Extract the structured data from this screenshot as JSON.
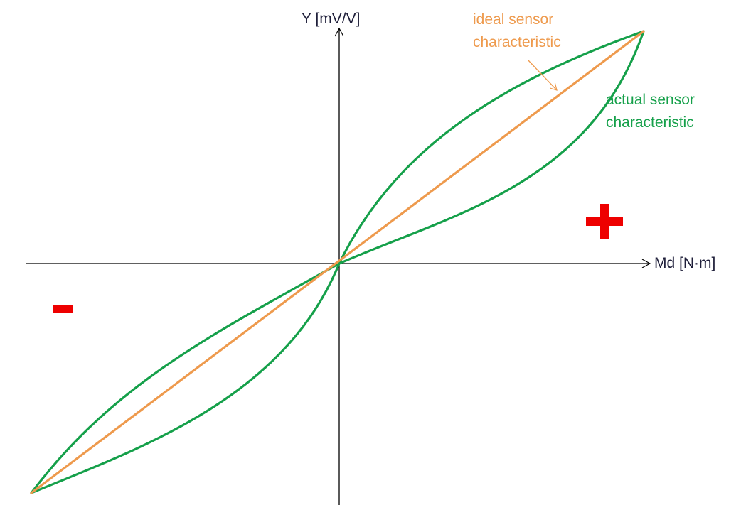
{
  "axes": {
    "y_label": "Y [mV/V]",
    "x_label": "Md [N·m]"
  },
  "annotations": {
    "ideal": {
      "line1": "ideal sensor",
      "line2": "characteristic",
      "color": "#ee9a4d"
    },
    "actual": {
      "line1": "actual sensor",
      "line2": "characteristic",
      "color": "#15a04a"
    }
  },
  "quadrant_signs": {
    "positive": "+",
    "negative": "-",
    "color": "#ee0000"
  },
  "colors": {
    "axis": "#000000",
    "ideal_curve": "#ee9a4d",
    "actual_curve": "#15a04a"
  }
}
